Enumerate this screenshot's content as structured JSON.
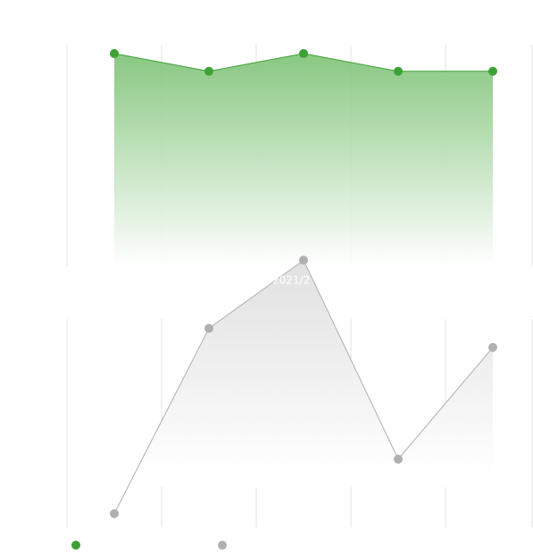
{
  "chart_data": [
    {
      "type": "area",
      "ylim": [
        0,
        100
      ],
      "grid": true,
      "series": [
        {
          "color": "#3ea135",
          "values": [
            96,
            88,
            96,
            88,
            88
          ]
        }
      ]
    },
    {
      "type": "area",
      "ylim": [
        0,
        100
      ],
      "grid": true,
      "tooltip": "2021/2",
      "series": [
        {
          "color": "#b0b0b0",
          "values": [
            5,
            73,
            98,
            25,
            66
          ]
        }
      ]
    }
  ]
}
